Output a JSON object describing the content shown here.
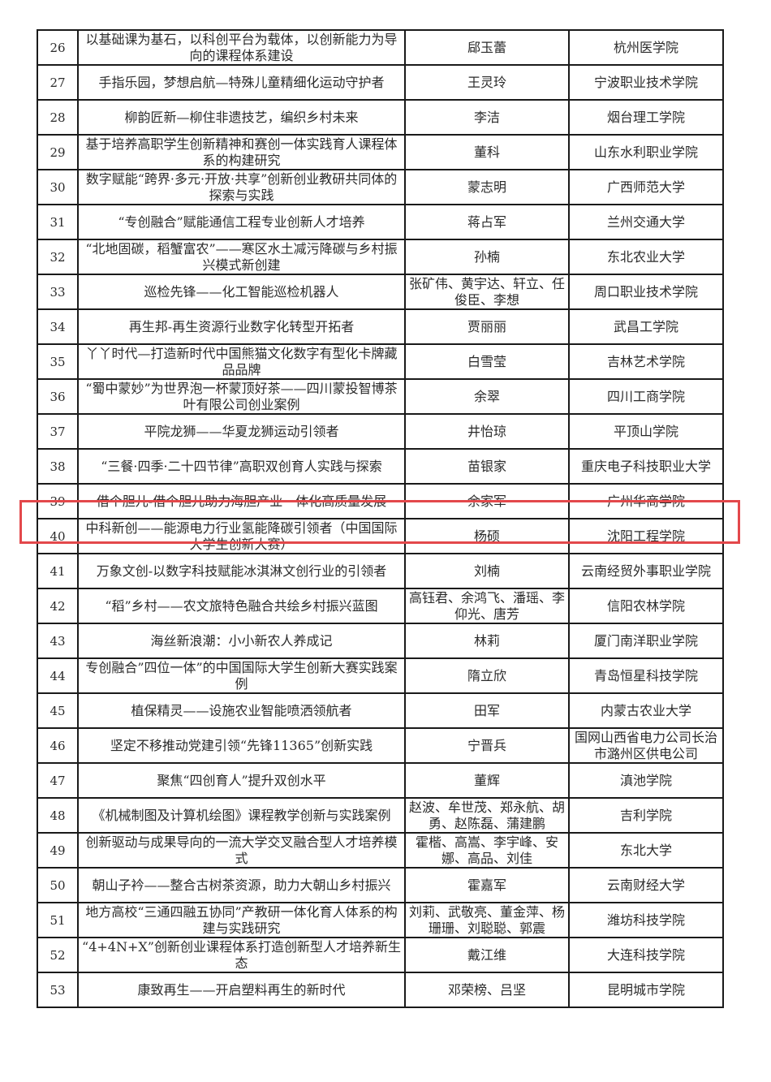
{
  "highlight_color": "#e3484b",
  "highlighted_row": "39",
  "rows": [
    {
      "no": "26",
      "title": "以基础课为基石，以科创平台为载体，以创新能力为导向的课程体系建设",
      "people": "郈玉蕾",
      "org": "杭州医学院"
    },
    {
      "no": "27",
      "title": "手指乐园，梦想启航—特殊儿童精细化运动守护者",
      "people": "王灵玲",
      "org": "宁波职业技术学院"
    },
    {
      "no": "28",
      "title": "柳韵匠新—柳住非遗技艺，编织乡村未来",
      "people": "李洁",
      "org": "烟台理工学院"
    },
    {
      "no": "29",
      "title": "基于培养高职学生创新精神和赛创一体实践育人课程体系的构建研究",
      "people": "董科",
      "org": "山东水利职业学院"
    },
    {
      "no": "30",
      "title": "数字赋能“跨界·多元·开放·共享”创新创业教研共同体的探索与实践",
      "people": "蒙志明",
      "org": "广西师范大学"
    },
    {
      "no": "31",
      "title": "“专创融合”赋能通信工程专业创新人才培养",
      "people": "蒋占军",
      "org": "兰州交通大学"
    },
    {
      "no": "32",
      "title": "“北地固碳，稻蟹富农”——寒区水土减污降碳与乡村振兴模式新创建",
      "people": "孙楠",
      "org": "东北农业大学"
    },
    {
      "no": "33",
      "title": "巡检先锋——化工智能巡检机器人",
      "people": "张矿伟、黄宇达、轩立、任俊臣、李想",
      "org": "周口职业技术学院"
    },
    {
      "no": "34",
      "title": "再生邦-再生资源行业数字化转型开拓者",
      "people": "贾丽丽",
      "org": "武昌工学院"
    },
    {
      "no": "35",
      "title": "丫丫时代—打造新时代中国熊猫文化数字有型化卡牌藏品品牌",
      "people": "白雪莹",
      "org": "吉林艺术学院"
    },
    {
      "no": "36",
      "title": "“蜀中蒙妙”为世界泡一杯蒙顶好茶——四川蒙投智博茶叶有限公司创业案例",
      "people": "余翠",
      "org": "四川工商学院"
    },
    {
      "no": "37",
      "title": "平院龙狮——华夏龙狮运动引领者",
      "people": "井怡琼",
      "org": "平顶山学院"
    },
    {
      "no": "38",
      "title": "“三餐·四季·二十四节律”高职双创育人实践与探索",
      "people": "苗银家",
      "org": "重庆电子科技职业大学"
    },
    {
      "no": "39",
      "title": "借个胆儿-借个胆儿助力海胆产业一体化高质量发展",
      "people": "余家军",
      "org": "广州华商学院"
    },
    {
      "no": "40",
      "title": "中科新创——能源电力行业氢能降碳引领者（中国国际大学生创新大赛）",
      "people": "杨硕",
      "org": "沈阳工程学院"
    },
    {
      "no": "41",
      "title": "万象文创-以数字科技赋能冰淇淋文创行业的引领者",
      "people": "刘楠",
      "org": "云南经贸外事职业学院"
    },
    {
      "no": "42",
      "title": "“稻”乡村——农文旅特色融合共绘乡村振兴蓝图",
      "people": "高钰君、余鸿飞、潘瑶、李仰光、唐芳",
      "org": "信阳农林学院"
    },
    {
      "no": "43",
      "title": "海丝新浪潮：小小新农人养成记",
      "people": "林莉",
      "org": "厦门南洋职业学院"
    },
    {
      "no": "44",
      "title": "专创融合”四位一体”的中国国际大学生创新大赛实践案例",
      "people": "隋立欣",
      "org": "青岛恒星科技学院"
    },
    {
      "no": "45",
      "title": "植保精灵——设施农业智能喷洒领航者",
      "people": "田军",
      "org": "内蒙古农业大学"
    },
    {
      "no": "46",
      "title": "坚定不移推动党建引领“先锋11365”创新实践",
      "people": "宁晋兵",
      "org": "国网山西省电力公司长治市潞州区供电公司"
    },
    {
      "no": "47",
      "title": "聚焦“四创育人”提升双创水平",
      "people": "董辉",
      "org": "滇池学院"
    },
    {
      "no": "48",
      "title": "《机械制图及计算机绘图》课程教学创新与实践案例",
      "people": "赵波、牟世茂、郑永航、胡勇、赵陈磊、蒲建鹏",
      "org": "吉利学院"
    },
    {
      "no": "49",
      "title": "创新驱动与成果导向的一流大学交叉融合型人才培养模式",
      "people": "霍楷、高嵩、李宇峰、安娜、高品、刘佳",
      "org": "东北大学"
    },
    {
      "no": "50",
      "title": "朝山子衿——整合古树茶资源，助力大朝山乡村振兴",
      "people": "霍嘉军",
      "org": "云南财经大学"
    },
    {
      "no": "51",
      "title": "地方高校“三通四融五协同”产教研一体化育人体系的构建与实践研究",
      "people": "刘莉、武敬亮、董金萍、杨珊珊、刘聪聪、郭震",
      "org": "潍坊科技学院"
    },
    {
      "no": "52",
      "title": "“4+4N+X”创新创业课程体系打造创新型人才培养新生态",
      "people": "戴江维",
      "org": "大连科技学院"
    },
    {
      "no": "53",
      "title": "康致再生——开启塑料再生的新时代",
      "people": "邓荣榜、吕坚",
      "org": "昆明城市学院"
    }
  ]
}
